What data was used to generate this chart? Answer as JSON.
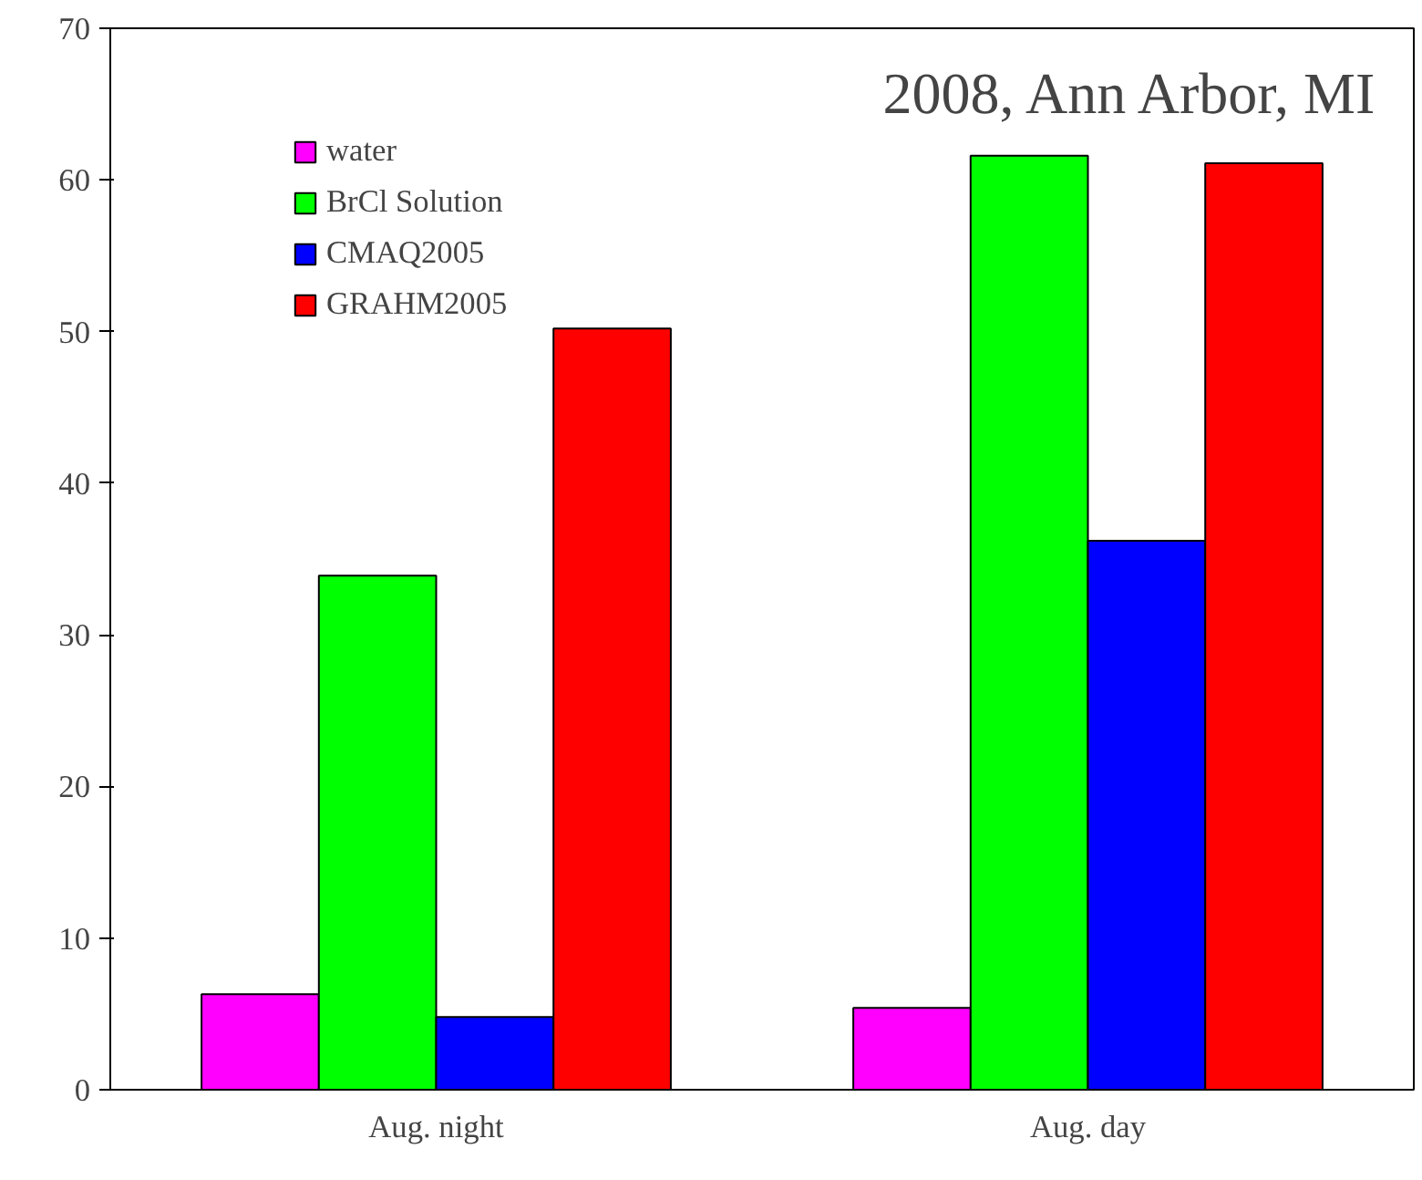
{
  "chart_data": {
    "type": "bar",
    "title": "2008, Ann Arbor, MI",
    "categories": [
      "Aug. night",
      "Aug. day"
    ],
    "series": [
      {
        "name": "water",
        "color": "#ff00ff",
        "values": [
          6.3,
          5.4
        ]
      },
      {
        "name": "BrCl Solution",
        "color": "#00ff00",
        "values": [
          33.9,
          61.6
        ]
      },
      {
        "name": "CMAQ2005",
        "color": "#0000ff",
        "values": [
          4.8,
          36.2
        ]
      },
      {
        "name": "GRAHM2005",
        "color": "#ff0000",
        "values": [
          50.2,
          61.1
        ]
      }
    ],
    "ylim": [
      0,
      70
    ],
    "yticks": [
      0,
      10,
      20,
      30,
      40,
      50,
      60,
      70
    ],
    "grid": false,
    "legend": "top left"
  }
}
